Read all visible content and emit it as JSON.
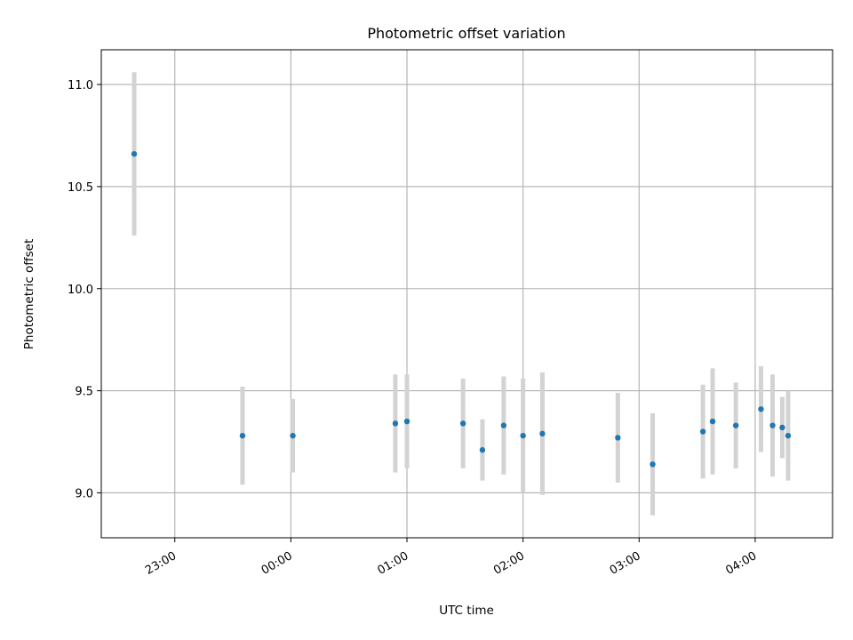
{
  "chart_data": {
    "type": "scatter",
    "title": "Photometric offset variation",
    "xlabel": "UTC time",
    "ylabel": "Photometric offset",
    "x_unit": "UTC time (HH:MM)",
    "xlim": [
      "22:22",
      "04:40"
    ],
    "ylim": [
      8.78,
      11.17
    ],
    "x_ticks": [
      "23:00",
      "00:00",
      "01:00",
      "02:00",
      "03:00",
      "04:00"
    ],
    "y_ticks": [
      "9.0",
      "9.5",
      "10.0",
      "10.5",
      "11.0"
    ],
    "grid": true,
    "point_color": "#1f77b4",
    "errorbar_color": "#d3d3d3",
    "points": [
      {
        "x": "22:39",
        "y": 10.66,
        "err": 0.4
      },
      {
        "x": "23:35",
        "y": 9.28,
        "err": 0.24
      },
      {
        "x": "00:01",
        "y": 9.28,
        "err": 0.18
      },
      {
        "x": "00:54",
        "y": 9.34,
        "err": 0.24
      },
      {
        "x": "01:00",
        "y": 9.35,
        "err": 0.23
      },
      {
        "x": "01:29",
        "y": 9.34,
        "err": 0.22
      },
      {
        "x": "01:39",
        "y": 9.21,
        "err": 0.15
      },
      {
        "x": "01:50",
        "y": 9.33,
        "err": 0.24
      },
      {
        "x": "02:00",
        "y": 9.28,
        "err": 0.28
      },
      {
        "x": "02:10",
        "y": 9.29,
        "err": 0.3
      },
      {
        "x": "02:49",
        "y": 9.27,
        "err": 0.22
      },
      {
        "x": "03:07",
        "y": 9.14,
        "err": 0.25
      },
      {
        "x": "03:33",
        "y": 9.3,
        "err": 0.23
      },
      {
        "x": "03:38",
        "y": 9.35,
        "err": 0.26
      },
      {
        "x": "03:50",
        "y": 9.33,
        "err": 0.21
      },
      {
        "x": "04:03",
        "y": 9.41,
        "err": 0.21
      },
      {
        "x": "04:09",
        "y": 9.33,
        "err": 0.25
      },
      {
        "x": "04:14",
        "y": 9.32,
        "err": 0.15
      },
      {
        "x": "04:17",
        "y": 9.28,
        "err": 0.22
      }
    ]
  }
}
